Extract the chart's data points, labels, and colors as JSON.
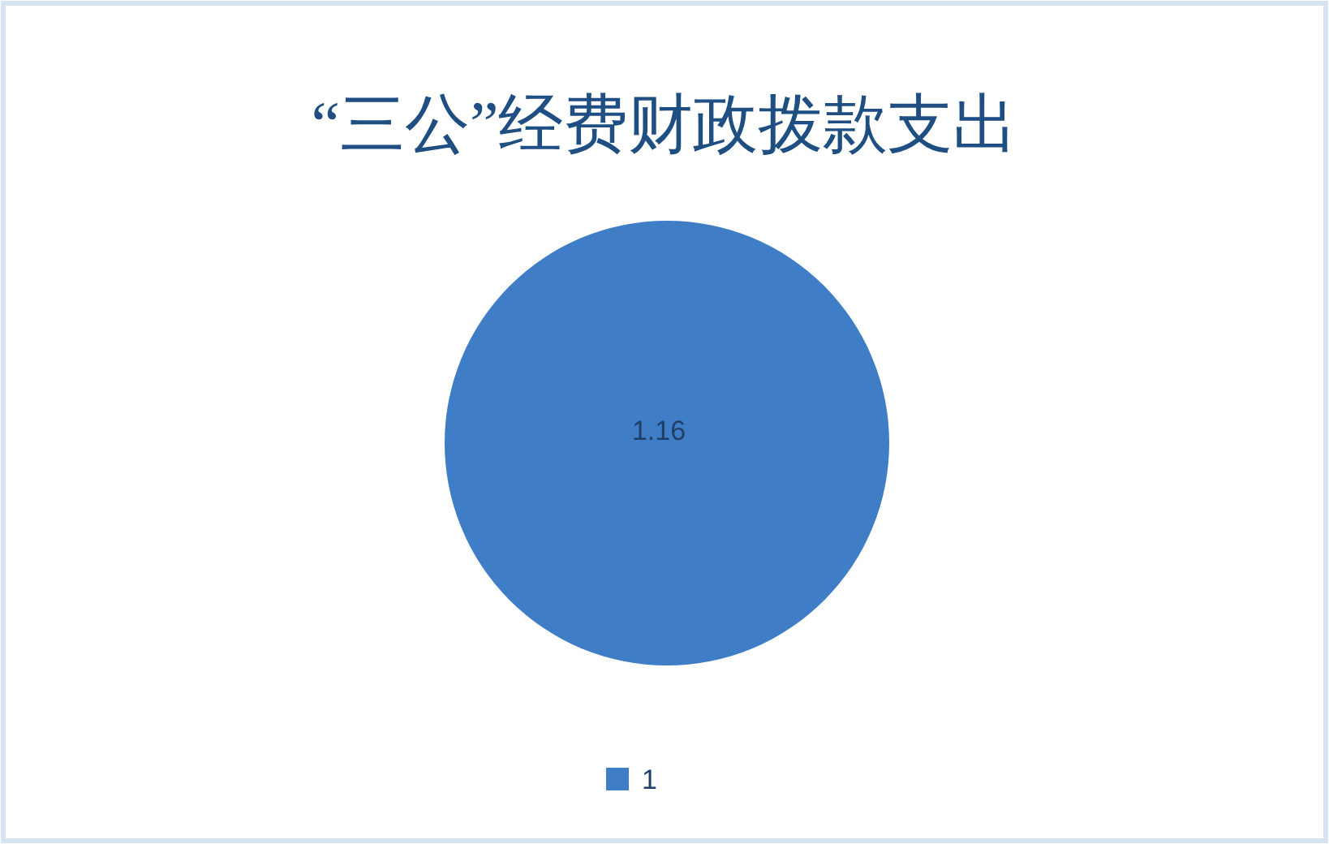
{
  "chart_data": {
    "type": "pie",
    "title": "“三公”经费财政拨款支出",
    "categories": [
      "1"
    ],
    "values": [
      1.16
    ],
    "colors": [
      "#3f7dc6"
    ],
    "data_labels": true,
    "legend": "bottom"
  }
}
